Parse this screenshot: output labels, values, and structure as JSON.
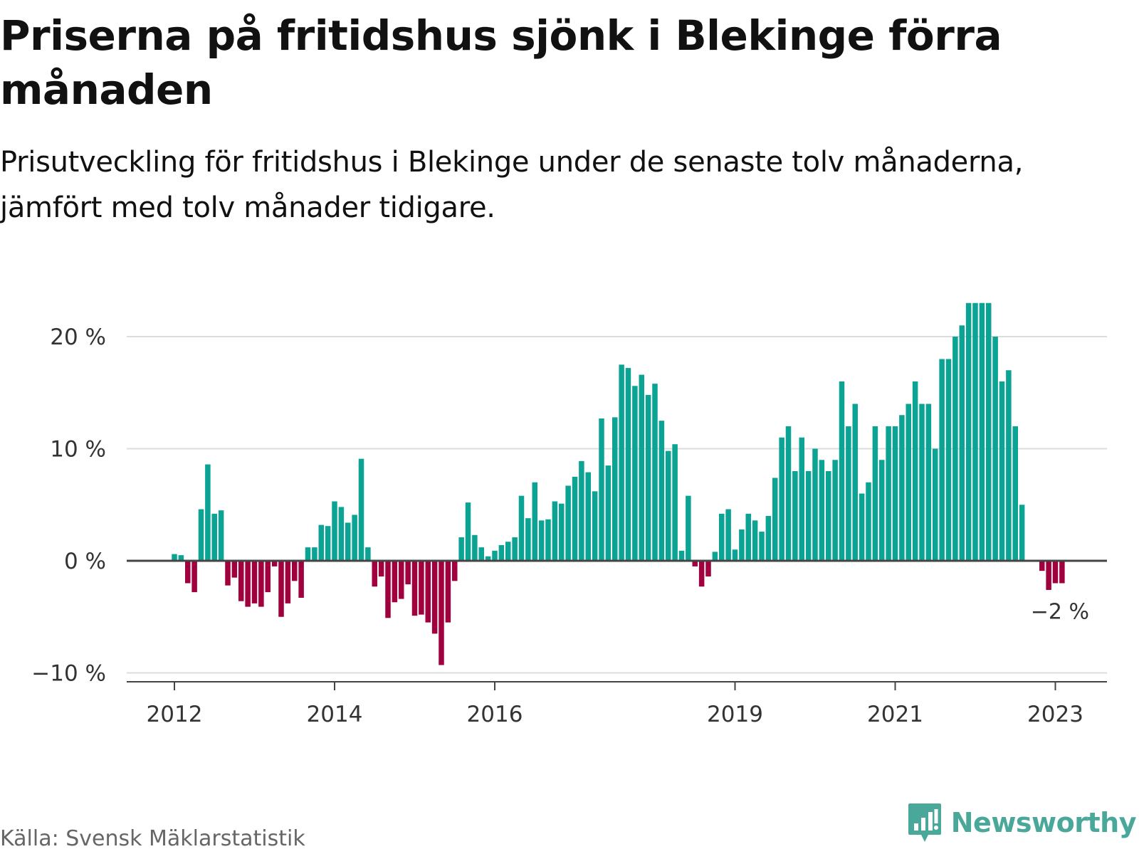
{
  "title": "Priserna på fritidshus sjönk i Blekinge förra månaden",
  "subtitle": "Prisutveckling för fritidshus i Blekinge under de senaste tolv månaderna, jämfört med tolv månader tidigare.",
  "source": "Källa: Svensk Mäklarstatistik",
  "brand": {
    "name": "Newsworthy",
    "icon": "newsworthy-logo-icon",
    "color": "#4aa89a"
  },
  "chart_data": {
    "type": "bar",
    "ylabel": "",
    "xlabel": "",
    "unit": "%",
    "ylim": [
      -11,
      23
    ],
    "yticks": [
      -10,
      0,
      10,
      20
    ],
    "ytick_labels": [
      "−10 %",
      "0 %",
      "10 %",
      "20 %"
    ],
    "xticks": [
      2012,
      2014,
      2016,
      2019,
      2021,
      2023
    ],
    "grid": true,
    "colors": {
      "positive": "#0ba393",
      "negative": "#a0003d"
    },
    "annotation": {
      "label": "−2 %",
      "target": "last"
    },
    "x_start": "2012-01",
    "values": [
      0.6,
      0.5,
      -2.0,
      -2.8,
      4.6,
      8.6,
      4.2,
      4.5,
      -2.2,
      -1.5,
      -3.6,
      -4.1,
      -3.8,
      -4.1,
      -2.8,
      -0.5,
      -5.0,
      -3.8,
      -1.8,
      -3.3,
      1.2,
      1.2,
      3.2,
      3.1,
      5.3,
      4.8,
      3.4,
      4.1,
      9.1,
      1.2,
      -2.3,
      -1.4,
      -5.1,
      -3.7,
      -3.4,
      -2.1,
      -4.9,
      -4.8,
      -5.5,
      -6.5,
      -9.3,
      -5.5,
      -1.8,
      2.1,
      5.2,
      2.3,
      1.2,
      0.4,
      0.9,
      1.4,
      1.7,
      2.1,
      5.8,
      3.8,
      7.0,
      3.6,
      3.7,
      5.3,
      5.1,
      6.7,
      7.5,
      8.9,
      7.9,
      6.2,
      12.7,
      8.5,
      12.8,
      17.5,
      17.2,
      15.6,
      16.6,
      14.8,
      15.8,
      12.5,
      9.8,
      10.4,
      0.9,
      5.8,
      -0.5,
      -2.3,
      -1.4,
      0.8,
      4.2,
      4.6,
      1.0,
      2.8,
      4.2,
      3.6,
      2.6,
      4.0,
      7.4,
      11.0,
      12.0,
      8.0,
      11.0,
      8.0,
      10.0,
      9.0,
      8.0,
      9.0,
      16.0,
      12.0,
      14.0,
      6.0,
      7.0,
      12.0,
      9.0,
      12.0,
      12.0,
      13.0,
      14.0,
      16.0,
      14.0,
      14.0,
      10.0,
      18.0,
      18.0,
      20.0,
      21.0,
      23.0,
      23.0,
      23.0,
      23.0,
      20.0,
      16.0,
      17.0,
      12.0,
      5.0,
      0,
      0,
      -0.9,
      -2.6,
      -2.0,
      -2.0
    ]
  }
}
